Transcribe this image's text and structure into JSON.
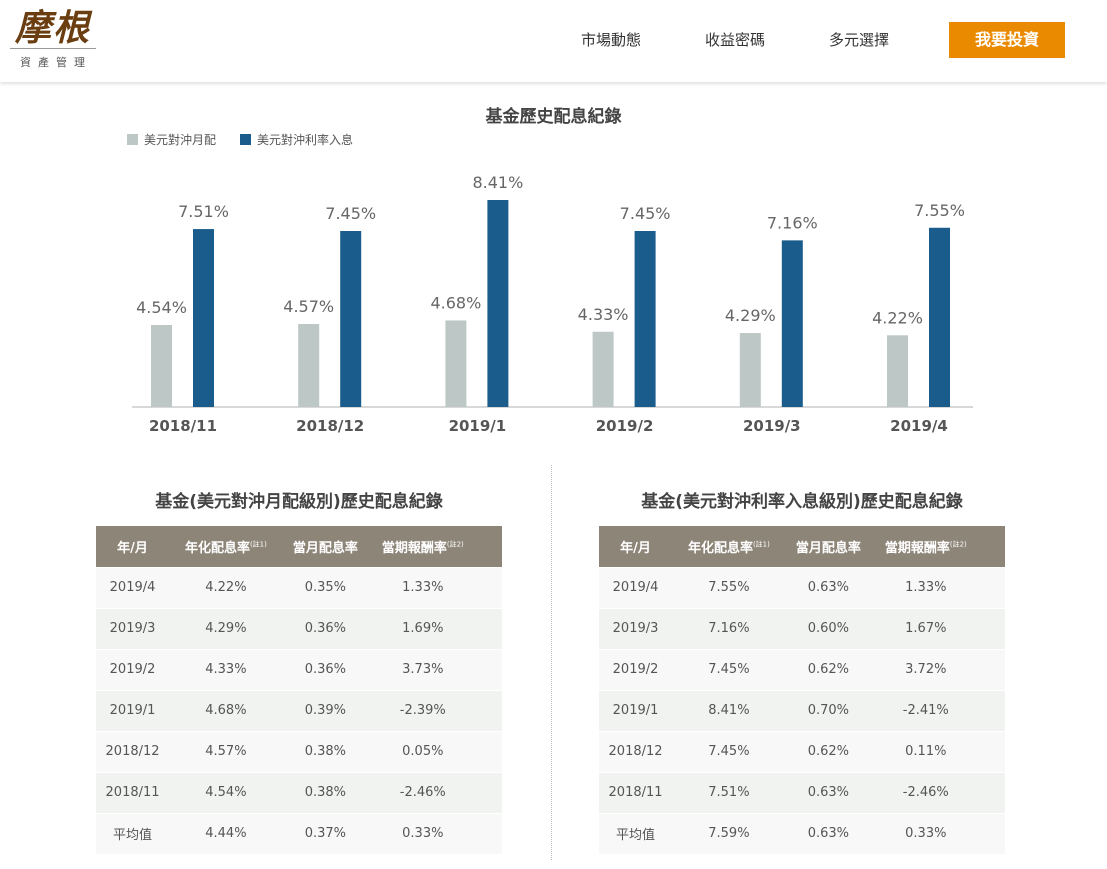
{
  "brand": {
    "name": "摩根",
    "sub": "資產管理"
  },
  "nav": [
    {
      "label": "市場動態"
    },
    {
      "label": "收益密碼"
    },
    {
      "label": "多元選擇"
    }
  ],
  "cta": "我要投資",
  "chart_data": {
    "type": "bar",
    "title": "基金歷史配息紀錄",
    "categories": [
      "2018/11",
      "2018/12",
      "2019/1",
      "2019/2",
      "2019/3",
      "2019/4"
    ],
    "series": [
      {
        "name": "美元對沖月配",
        "color": "#bcc7c6",
        "values": [
          4.54,
          4.57,
          4.68,
          4.33,
          4.29,
          4.22
        ],
        "labels": [
          "4.54%",
          "4.57%",
          "4.68%",
          "4.33%",
          "4.29%",
          "4.22%"
        ]
      },
      {
        "name": "美元對沖利率入息",
        "color": "#1a5c8c",
        "values": [
          7.51,
          7.45,
          8.41,
          7.45,
          7.16,
          7.55
        ],
        "labels": [
          "7.51%",
          "7.45%",
          "8.41%",
          "7.45%",
          "7.16%",
          "7.55%"
        ]
      }
    ],
    "ylim": [
      2,
      8.41
    ],
    "legend": "top-left",
    "grid": false
  },
  "headers": [
    "年/月",
    "年化配息率",
    "當月配息率",
    "當期報酬率"
  ],
  "notes": [
    "(註1)",
    "(註2)"
  ],
  "tables": [
    {
      "title": "基金(美元對沖月配級別)歷史配息紀錄",
      "rows": [
        [
          "2019/4",
          "4.22%",
          "0.35%",
          "1.33%"
        ],
        [
          "2019/3",
          "4.29%",
          "0.36%",
          "1.69%"
        ],
        [
          "2019/2",
          "4.33%",
          "0.36%",
          "3.73%"
        ],
        [
          "2019/1",
          "4.68%",
          "0.39%",
          "-2.39%"
        ],
        [
          "2018/12",
          "4.57%",
          "0.38%",
          "0.05%"
        ],
        [
          "2018/11",
          "4.54%",
          "0.38%",
          "-2.46%"
        ],
        [
          "平均值",
          "4.44%",
          "0.37%",
          "0.33%"
        ]
      ]
    },
    {
      "title": "基金(美元對沖利率入息級別)歷史配息紀錄",
      "rows": [
        [
          "2019/4",
          "7.55%",
          "0.63%",
          "1.33%"
        ],
        [
          "2019/3",
          "7.16%",
          "0.60%",
          "1.67%"
        ],
        [
          "2019/2",
          "7.45%",
          "0.62%",
          "3.72%"
        ],
        [
          "2019/1",
          "8.41%",
          "0.70%",
          "-2.41%"
        ],
        [
          "2018/12",
          "7.45%",
          "0.62%",
          "0.11%"
        ],
        [
          "2018/11",
          "7.51%",
          "0.63%",
          "-2.46%"
        ],
        [
          "平均值",
          "7.59%",
          "0.63%",
          "0.33%"
        ]
      ]
    }
  ]
}
